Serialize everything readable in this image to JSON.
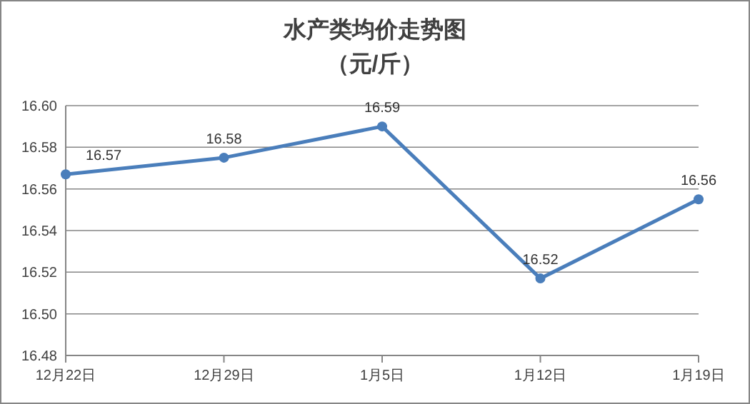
{
  "chart_data": {
    "type": "line",
    "title": "水产类均价走势图",
    "subtitle": "（元/斤）",
    "categories": [
      "12月22日",
      "12月29日",
      "1月5日",
      "1月12日",
      "1月19日"
    ],
    "series": [
      {
        "color": "#4a7ebb",
        "values": [
          16.567,
          16.575,
          16.59,
          16.517,
          16.555
        ],
        "value_labels": [
          "16.57",
          "16.58",
          "16.59",
          "16.52",
          "16.56"
        ]
      }
    ],
    "ylim": [
      16.48,
      16.6
    ],
    "yticks": [
      {
        "value": 16.48,
        "label": "16.48"
      },
      {
        "value": 16.5,
        "label": "16.50"
      },
      {
        "value": 16.52,
        "label": "16.52"
      },
      {
        "value": 16.54,
        "label": "16.54"
      },
      {
        "value": 16.56,
        "label": "16.56"
      },
      {
        "value": 16.58,
        "label": "16.58"
      },
      {
        "value": 16.6,
        "label": "16.60"
      }
    ],
    "grid": "y",
    "marker": "circle",
    "line_style": "solid"
  }
}
